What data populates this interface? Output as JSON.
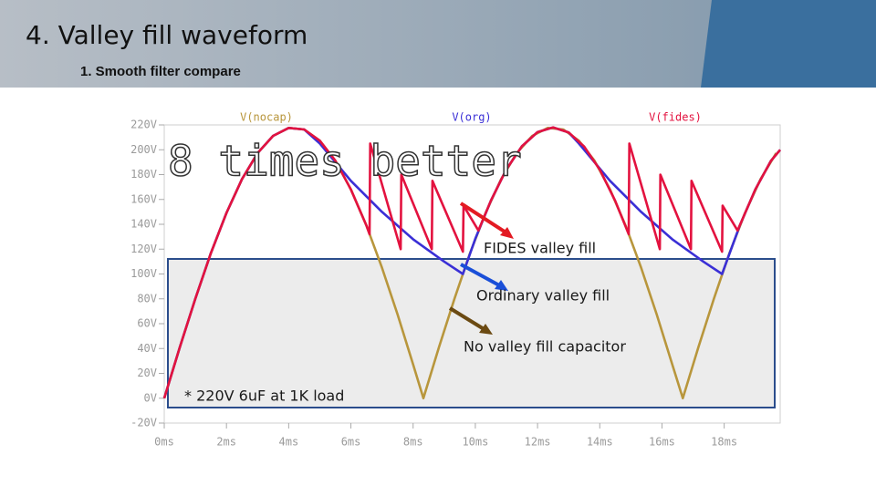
{
  "slide": {
    "title": "4. Valley fill waveform",
    "subtitle": "1. Smooth filter compare"
  },
  "chart_data": {
    "type": "line",
    "annotations": [
      "8 times better",
      "FIDES valley fill",
      "Ordinary valley fill",
      "No valley fill capacitor",
      "* 220V 6uF at 1K load"
    ],
    "xlim": [
      0,
      19.8
    ],
    "ylim": [
      -20,
      220
    ],
    "xticks": [
      {
        "value": 0,
        "label": "0ms"
      },
      {
        "value": 2,
        "label": "2ms"
      },
      {
        "value": 4,
        "label": "4ms"
      },
      {
        "value": 6,
        "label": "6ms"
      },
      {
        "value": 8,
        "label": "8ms"
      },
      {
        "value": 10,
        "label": "10ms"
      },
      {
        "value": 12,
        "label": "12ms"
      },
      {
        "value": 14,
        "label": "14ms"
      },
      {
        "value": 16,
        "label": "16ms"
      },
      {
        "value": 18,
        "label": "18ms"
      }
    ],
    "yticks": [
      {
        "value": 220,
        "label": "220V"
      },
      {
        "value": 200,
        "label": "200V"
      },
      {
        "value": 180,
        "label": "180V"
      },
      {
        "value": 160,
        "label": "160V"
      },
      {
        "value": 140,
        "label": "140V"
      },
      {
        "value": 120,
        "label": "120V"
      },
      {
        "value": 100,
        "label": "100V"
      },
      {
        "value": 80,
        "label": "80V"
      },
      {
        "value": 60,
        "label": "60V"
      },
      {
        "value": 40,
        "label": "40V"
      },
      {
        "value": 20,
        "label": "20V"
      },
      {
        "value": 0,
        "label": "0V"
      },
      {
        "value": -20,
        "label": "-20V"
      }
    ],
    "series": [
      {
        "name": "V(nocap)",
        "color": "#b8963c",
        "x": [
          0,
          0.5,
          1,
          1.5,
          2,
          2.5,
          3,
          3.5,
          4,
          4.5,
          5,
          5.5,
          6,
          6.5,
          7,
          7.5,
          8,
          8.33,
          8.83,
          9.33,
          9.83,
          10.33,
          10.83,
          11.33,
          11.83,
          12.33,
          12.83,
          13.33,
          13.83,
          14.33,
          14.83,
          15.33,
          15.83,
          16.33,
          16.67,
          17.17,
          17.67,
          18.17,
          18.67,
          19.17,
          19.67
        ],
        "values": [
          0,
          40.9,
          80.2,
          116.8,
          149.2,
          176.4,
          197.3,
          211.2,
          217.6,
          216.3,
          207.3,
          191.2,
          168.1,
          138.9,
          105.1,
          67.4,
          27.3,
          0,
          40.9,
          80.2,
          116.8,
          149.2,
          176.4,
          197.3,
          211.2,
          217.6,
          216.3,
          207.3,
          191.2,
          168.1,
          138.9,
          105.1,
          67.4,
          27.3,
          0,
          40.9,
          80.2,
          116.8,
          149.2,
          176.4,
          197.3
        ]
      },
      {
        "name": "V(org)",
        "color": "#3a2fd6",
        "x": [
          0,
          0.5,
          1,
          1.5,
          2,
          2.5,
          3,
          3.5,
          4,
          4.5,
          5,
          6,
          7,
          8,
          9,
          9.6,
          10,
          10.5,
          11,
          11.5,
          12,
          12.5,
          13,
          13.33,
          14.33,
          15.33,
          16.33,
          17.33,
          17.93,
          18.5,
          19,
          19.5,
          19.8
        ],
        "values": [
          0,
          40.9,
          80.2,
          116.8,
          149.2,
          176.4,
          197.3,
          211.2,
          217.6,
          216.3,
          205,
          175,
          150,
          128,
          110,
          100,
          128.4,
          159.1,
          184.3,
          202.8,
          214.2,
          218,
          214,
          205,
          175,
          150,
          128,
          110,
          100,
          139,
          168,
          191,
          200
        ]
      },
      {
        "name": "V(fides)",
        "color": "#e3123f",
        "x": [
          0,
          0.5,
          1,
          1.5,
          2,
          2.5,
          3,
          3.5,
          4,
          4.5,
          5,
          5.5,
          6,
          6.5,
          6.6,
          6.62,
          7.6,
          7.62,
          8.6,
          8.62,
          9.6,
          9.62,
          10.1,
          10.5,
          11,
          11.5,
          12,
          12.5,
          13,
          13.5,
          14,
          14.5,
          14.93,
          14.95,
          15.93,
          15.95,
          16.93,
          16.95,
          17.93,
          17.95,
          18.43,
          19,
          19.5,
          19.8
        ],
        "values": [
          0,
          40.9,
          80.2,
          116.8,
          149.2,
          176.4,
          197.3,
          211.2,
          217.6,
          216.3,
          207.3,
          191.2,
          168.1,
          138.9,
          132,
          205,
          120,
          180,
          120,
          175,
          118,
          155,
          135,
          159.1,
          184.3,
          202.8,
          214.2,
          218,
          214,
          202.6,
          184,
          158.7,
          132,
          205,
          120,
          180,
          120,
          175,
          118,
          155,
          135,
          168,
          191,
          200
        ]
      }
    ]
  }
}
